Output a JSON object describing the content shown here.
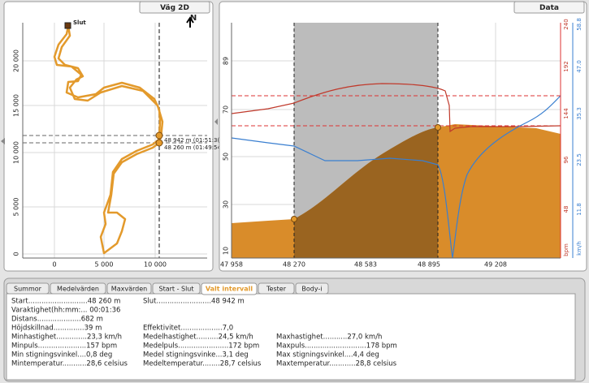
{
  "map_panel": {
    "title": "Väg 2D",
    "north": "N",
    "end_label": "Slut",
    "marker_labels": [
      "48 942 m (01:51:3(",
      "48 260 m (01:49:54"
    ],
    "y_labels": [
      "20 000",
      "15 000",
      "10 000",
      "5 000",
      "0"
    ],
    "x_labels": [
      "0",
      "5 000",
      "10 000"
    ]
  },
  "data_panel": {
    "title": "Data",
    "y_left_labels": [
      "89",
      "70",
      "50",
      "30",
      "10"
    ],
    "x_labels": [
      "47 958",
      "48 270",
      "48 583",
      "48 895",
      "49 208"
    ],
    "y_red_labels": [
      "240",
      "192",
      "144",
      "96",
      "48"
    ],
    "y_red_unit": "bpm",
    "y_blue_labels": [
      "58.8",
      "47.0",
      "35.3",
      "23.5",
      "11.8"
    ],
    "y_blue_unit": "km/h"
  },
  "stats_panel": {
    "tabs": [
      "Summor",
      "Medelvärden",
      "Maxvärden",
      "Start - Slut",
      "Valt intervall",
      "Tester",
      "Body-i"
    ],
    "active_tab": "Valt intervall",
    "rows": [
      [
        "Start...........................48 260 m",
        "Slut.........................48 942 m"
      ],
      [
        "Varaktighet(hh:mm:... 00:01:36"
      ],
      [
        "Distans....................682 m"
      ],
      [
        "Höjdskillnad..............39 m",
        "Effektivitet...................7,0"
      ],
      [
        "Minhastighet..............23,3 km/h",
        "Medelhastighet..........24,5 km/h",
        "Maxhastighet...........27,0 km/h"
      ],
      [
        "Minpuls......................157 bpm",
        "Medelpuls.......................172 bpm",
        "Maxpuls............................178 bpm"
      ],
      [
        "Min stigningsvinkel....0,8 deg",
        "Medel stigningsvinke...3,1 deg",
        "Max stigningsvinkel....4,4 deg"
      ],
      [
        "Mintemperatur...........28,6 celsius",
        "Medeltemperatur........28,7 celsius",
        "Maxtemperatur............28,8 celsius"
      ]
    ]
  }
}
